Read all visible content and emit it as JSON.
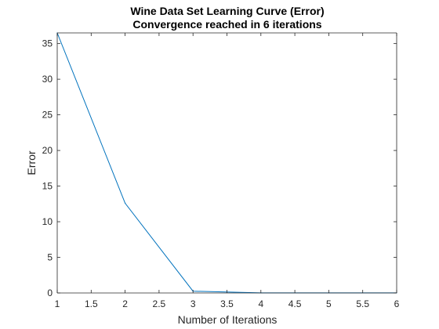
{
  "chart_data": {
    "type": "line",
    "title": "Wine Data Set Learning Curve (Error)",
    "subtitle": "Convergence reached in 6 iterations",
    "xlabel": "Number of Iterations",
    "ylabel": "Error",
    "xlim": [
      1,
      6
    ],
    "ylim": [
      0,
      36.5
    ],
    "xticks": [
      1,
      1.5,
      2,
      2.5,
      3,
      3.5,
      4,
      4.5,
      5,
      5.5,
      6
    ],
    "xtick_labels": [
      "1",
      "1.5",
      "2",
      "2.5",
      "3",
      "3.5",
      "4",
      "4.5",
      "5",
      "5.5",
      "6"
    ],
    "yticks": [
      0,
      5,
      10,
      15,
      20,
      25,
      30,
      35
    ],
    "ytick_labels": [
      "0",
      "5",
      "10",
      "15",
      "20",
      "25",
      "30",
      "35"
    ],
    "grid": false,
    "series": [
      {
        "name": "Error",
        "color": "#0072BD",
        "x": [
          1,
          2,
          3,
          4,
          5,
          6
        ],
        "y": [
          36.5,
          12.6,
          0.25,
          0.02,
          0.01,
          0.01
        ]
      }
    ]
  }
}
